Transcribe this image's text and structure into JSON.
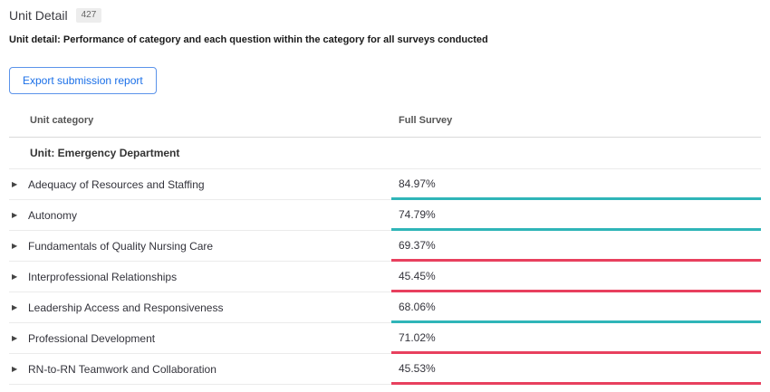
{
  "page": {
    "title": "Unit Detail",
    "badge": "427",
    "subtitle": "Unit detail: Performance of category and each question within the category for all surveys conducted",
    "export_button": "Export submission report"
  },
  "icons": {
    "expand_arrow": "▶"
  },
  "colors": {
    "teal": "#2fb5b8",
    "red": "#e8405e",
    "button_blue": "#1a6fe8"
  },
  "table": {
    "columns": [
      "Unit category",
      "Full Survey"
    ],
    "group_header": "Unit: Emergency Department",
    "rows": [
      {
        "category": "Adequacy of Resources and Staffing",
        "value": "84.97%",
        "status_color": "teal"
      },
      {
        "category": "Autonomy",
        "value": "74.79%",
        "status_color": "teal"
      },
      {
        "category": "Fundamentals of Quality Nursing Care",
        "value": "69.37%",
        "status_color": "red"
      },
      {
        "category": "Interprofessional Relationships",
        "value": "45.45%",
        "status_color": "red"
      },
      {
        "category": "Leadership Access and Responsiveness",
        "value": "68.06%",
        "status_color": "teal"
      },
      {
        "category": "Professional Development",
        "value": "71.02%",
        "status_color": "red"
      },
      {
        "category": "RN-to-RN Teamwork and Collaboration",
        "value": "45.53%",
        "status_color": "red"
      }
    ]
  }
}
